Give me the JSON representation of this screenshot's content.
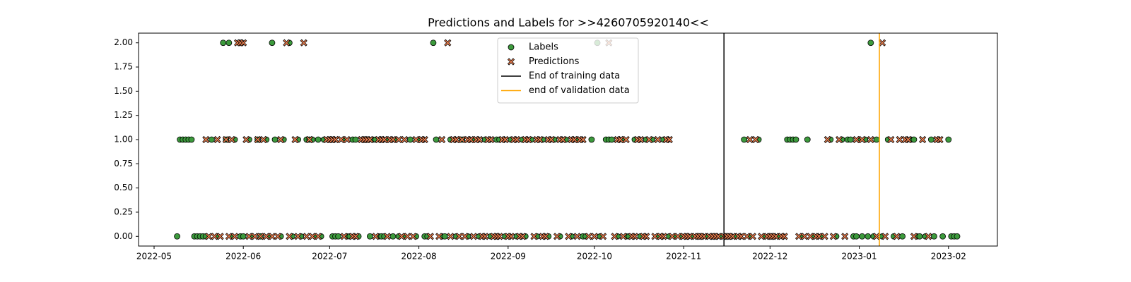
{
  "chart_data": {
    "type": "scatter",
    "title": "Predictions and Labels for >>4260705920140<<",
    "xlim": [
      19107.6,
      19406
    ],
    "ylim": [
      -0.1,
      2.1
    ],
    "xticks": [
      {
        "value": 19113,
        "label": "2022-05"
      },
      {
        "value": 19144,
        "label": "2022-06"
      },
      {
        "value": 19174,
        "label": "2022-07"
      },
      {
        "value": 19205,
        "label": "2022-08"
      },
      {
        "value": 19236,
        "label": "2022-09"
      },
      {
        "value": 19266,
        "label": "2022-10"
      },
      {
        "value": 19297,
        "label": "2022-11"
      },
      {
        "value": 19327,
        "label": "2022-12"
      },
      {
        "value": 19358,
        "label": "2023-01"
      },
      {
        "value": 19389,
        "label": "2023-02"
      }
    ],
    "yticks": [
      {
        "value": 0,
        "label": "0.00"
      },
      {
        "value": 0.25,
        "label": "0.25"
      },
      {
        "value": 0.5,
        "label": "0.50"
      },
      {
        "value": 0.75,
        "label": "0.75"
      },
      {
        "value": 1,
        "label": "1.00"
      },
      {
        "value": 1.25,
        "label": "1.25"
      },
      {
        "value": 1.5,
        "label": "1.50"
      },
      {
        "value": 1.75,
        "label": "1.75"
      },
      {
        "value": 2,
        "label": "2.00"
      }
    ],
    "legend": "upper center",
    "series": [
      {
        "name": "Labels",
        "color": "#3c9a3c",
        "marker": "o",
        "x": [
          19121,
          19122,
          19123,
          19124,
          19125,
          19126,
          19127,
          19128,
          19129,
          19130,
          19131,
          19133,
          19135,
          19137,
          19138,
          19139,
          19140,
          19141,
          19143,
          19144,
          19146,
          19147,
          19149,
          19150,
          19152,
          19153,
          19154,
          19155,
          19157,
          19158,
          19160,
          19161,
          19163,
          19164,
          19166,
          19167,
          19168,
          19169,
          19170,
          19171,
          19172,
          19175,
          19176,
          19177,
          19179,
          19180,
          19181,
          19182,
          19183,
          19184,
          19186,
          19188,
          19189,
          19190,
          19191,
          19192,
          19193,
          19194,
          19196,
          19197,
          19198,
          19200,
          19202,
          19204,
          19205,
          19207,
          19208,
          19210,
          19211,
          19213,
          19214,
          19216,
          19218,
          19220,
          19222,
          19224,
          19226,
          19228,
          19230,
          19232,
          19233,
          19235,
          19237,
          19239,
          19241,
          19242,
          19244,
          19246,
          19248,
          19250,
          19252,
          19254,
          19256,
          19258,
          19260,
          19262,
          19263,
          19265,
          19267,
          19268,
          19270,
          19271,
          19272,
          19274,
          19276,
          19277,
          19278,
          19280,
          19282,
          19284,
          19286,
          19288,
          19290,
          19292,
          19294,
          19296,
          19300,
          19305,
          19310,
          19315,
          19318,
          19320,
          19323,
          19325,
          19330,
          19333,
          19334,
          19335,
          19336,
          19338,
          19340,
          19342,
          19345,
          19348,
          19350,
          19352,
          19354,
          19355,
          19356,
          19357,
          19358,
          19359,
          19360,
          19361,
          19362,
          19363,
          19364,
          19366,
          19368,
          19370,
          19373,
          19376,
          19377,
          19378,
          19379,
          19381,
          19383,
          19384,
          19387,
          19389,
          19390,
          19391,
          19392
        ],
        "values": [
          0,
          1,
          1,
          1,
          1,
          1,
          0,
          0,
          0,
          0,
          0,
          1,
          0,
          2,
          1,
          2,
          0,
          1,
          0,
          0,
          1,
          0,
          1,
          0,
          1,
          0,
          2,
          1,
          0,
          1,
          2,
          0,
          1,
          0,
          1,
          1,
          1,
          0,
          1,
          0,
          1,
          0,
          0,
          0,
          1,
          0,
          0,
          1,
          1,
          0,
          1,
          0,
          1,
          1,
          0,
          0,
          0,
          1,
          0,
          1,
          0,
          0,
          1,
          0,
          1,
          0,
          0,
          2,
          1,
          0,
          0,
          1,
          0,
          1,
          0,
          1,
          0,
          1,
          0,
          1,
          1,
          0,
          1,
          0,
          1,
          0,
          1,
          0,
          1,
          0,
          1,
          0,
          1,
          0,
          1,
          0,
          0,
          1,
          2,
          0,
          1,
          1,
          1,
          0,
          1,
          0,
          0,
          1,
          0,
          1,
          1,
          0,
          1,
          0,
          0,
          0,
          0,
          0,
          0,
          0,
          1,
          0,
          1,
          0,
          0,
          1,
          1,
          1,
          1,
          0,
          1,
          0,
          0,
          1,
          0,
          1,
          1,
          1,
          0,
          0,
          1,
          0,
          1,
          0,
          2,
          0,
          1,
          0,
          1,
          0,
          0,
          1,
          1,
          0,
          0,
          0,
          1,
          0,
          0,
          1,
          0,
          0,
          0
        ]
      },
      {
        "name": "Predictions",
        "color": "#f0804f",
        "marker": "X",
        "x": [
          19131,
          19132,
          19134,
          19135,
          19136,
          19138,
          19139,
          19140,
          19141,
          19142,
          19143,
          19144,
          19145,
          19146,
          19148,
          19149,
          19150,
          19151,
          19152,
          19154,
          19156,
          19157,
          19159,
          19160,
          19162,
          19163,
          19165,
          19166,
          19167,
          19168,
          19170,
          19173,
          19174,
          19175,
          19176,
          19178,
          19179,
          19180,
          19182,
          19183,
          19185,
          19186,
          19187,
          19188,
          19190,
          19191,
          19192,
          19193,
          19194,
          19195,
          19196,
          19198,
          19199,
          19200,
          19201,
          19203,
          19204,
          19206,
          19207,
          19209,
          19212,
          19213,
          19215,
          19216,
          19217,
          19218,
          19219,
          19220,
          19221,
          19222,
          19223,
          19224,
          19225,
          19226,
          19227,
          19228,
          19229,
          19230,
          19231,
          19232,
          19233,
          19234,
          19235,
          19236,
          19237,
          19238,
          19239,
          19240,
          19241,
          19242,
          19243,
          19245,
          19246,
          19247,
          19248,
          19249,
          19250,
          19251,
          19253,
          19254,
          19255,
          19257,
          19258,
          19259,
          19260,
          19261,
          19262,
          19264,
          19266,
          19269,
          19271,
          19273,
          19274,
          19275,
          19276,
          19277,
          19279,
          19280,
          19281,
          19282,
          19283,
          19284,
          19285,
          19287,
          19288,
          19289,
          19290,
          19291,
          19292,
          19293,
          19295,
          19297,
          19298,
          19299,
          19301,
          19302,
          19303,
          19304,
          19306,
          19307,
          19308,
          19309,
          19311,
          19312,
          19313,
          19314,
          19316,
          19317,
          19319,
          19320,
          19321,
          19322,
          19324,
          19326,
          19327,
          19328,
          19329,
          19331,
          19332,
          19337,
          19339,
          19341,
          19343,
          19344,
          19346,
          19347,
          19349,
          19351,
          19353,
          19357,
          19359,
          19362,
          19364,
          19366,
          19367,
          19369,
          19371,
          19372,
          19374,
          19375,
          19377,
          19380,
          19382,
          19385,
          19386
        ],
        "values": [
          1,
          0,
          0,
          1,
          0,
          1,
          0,
          1,
          0,
          2,
          2,
          2,
          1,
          0,
          0,
          1,
          0,
          1,
          0,
          0,
          0,
          1,
          2,
          0,
          1,
          0,
          2,
          0,
          1,
          0,
          0,
          1,
          1,
          1,
          1,
          1,
          0,
          1,
          0,
          0,
          1,
          1,
          1,
          1,
          0,
          1,
          1,
          1,
          0,
          1,
          1,
          1,
          0,
          1,
          0,
          0,
          1,
          1,
          1,
          0,
          0,
          1,
          2,
          0,
          1,
          1,
          0,
          1,
          0,
          1,
          1,
          0,
          1,
          1,
          0,
          0,
          1,
          1,
          0,
          0,
          0,
          1,
          1,
          0,
          0,
          1,
          1,
          0,
          0,
          1,
          1,
          0,
          1,
          1,
          0,
          0,
          1,
          1,
          0,
          1,
          1,
          0,
          1,
          1,
          0,
          1,
          1,
          0,
          0,
          0,
          2,
          0,
          1,
          1,
          0,
          1,
          0,
          0,
          1,
          1,
          0,
          0,
          1,
          0,
          1,
          0,
          0,
          1,
          1,
          0,
          0,
          0,
          0,
          0,
          0,
          0,
          0,
          0,
          0,
          0,
          0,
          0,
          0,
          0,
          0,
          0,
          0,
          0,
          0,
          1,
          0,
          1,
          0,
          0,
          0,
          0,
          0,
          0,
          0,
          0,
          0,
          0,
          0,
          0,
          0,
          1,
          0,
          1,
          0,
          1,
          1,
          1,
          0,
          2,
          0,
          1,
          0,
          1,
          1,
          1,
          0,
          1,
          0,
          1,
          1
        ]
      }
    ],
    "vlines": [
      {
        "x": 19311,
        "label": "End of training data",
        "color": "#000000"
      },
      {
        "x": 19365,
        "label": "end of validation data",
        "color": "#ffa500"
      }
    ]
  }
}
